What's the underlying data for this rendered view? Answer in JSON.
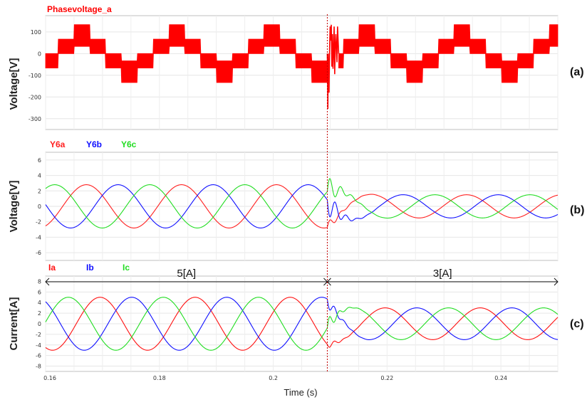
{
  "chart_data": [
    {
      "type": "line",
      "title": "Phasevoltage_a",
      "title_color": "#ff0000",
      "ylabel": "Voltage[V]",
      "panel_label": "(a)",
      "xlim": [
        0.16,
        0.25
      ],
      "ylim": [
        -350,
        175
      ],
      "yticks": [
        100,
        0,
        -100,
        -200,
        -300
      ],
      "ytick_labels": [
        "100",
        "0",
        "-100",
        "-200",
        "-300"
      ],
      "grid": true,
      "series": [
        {
          "color": "#ff0000",
          "waveform": "six-step phase voltage (PWM filled)",
          "fundamental_period": 0.0167,
          "steps": [
            66.7,
            133.3,
            66.7,
            -66.7,
            -133.3,
            -66.7
          ],
          "transient": {
            "t_start": 0.2095,
            "t_end": 0.2115,
            "min": -255,
            "max": 133
          }
        }
      ]
    },
    {
      "type": "line",
      "ylabel": "Voltage[V]",
      "panel_label": "(b)",
      "xlim": [
        0.16,
        0.25
      ],
      "ylim": [
        -7,
        7
      ],
      "yticks": [
        6,
        4,
        2,
        0,
        -2,
        -4,
        -6
      ],
      "ytick_labels": [
        "6",
        "4",
        "2",
        "0",
        "-2",
        "-4",
        "-6"
      ],
      "grid": true,
      "series": [
        {
          "name": "Y6a",
          "color": "#ff2020",
          "amplitude_before": 2.8,
          "amplitude_after": 1.5,
          "phase_deg": 0
        },
        {
          "name": "Y6b",
          "color": "#1010ff",
          "amplitude_before": 2.8,
          "amplitude_after": 1.5,
          "phase_deg": -120
        },
        {
          "name": "Y6c",
          "color": "#22dd22",
          "amplitude_before": 2.8,
          "amplitude_after": 1.5,
          "phase_deg": 120
        }
      ],
      "fundamental_period": 0.0167,
      "event_time": 0.2095,
      "transient": {
        "b_min": -5.0,
        "c_max": 5.0
      }
    },
    {
      "type": "line",
      "ylabel": "Current[A]",
      "panel_label": "(c)",
      "xlabel": "Time (s)",
      "xlim": [
        0.16,
        0.25
      ],
      "ylim": [
        -9,
        9
      ],
      "xticks": [
        0.16,
        0.18,
        0.2,
        0.22,
        0.24
      ],
      "xtick_labels": [
        "0.16",
        "0.18",
        "0.2",
        "0.22",
        "0.24"
      ],
      "yticks": [
        8,
        6,
        4,
        2,
        0,
        -2,
        -4,
        -6,
        -8
      ],
      "ytick_labels": [
        "8",
        "6",
        "4",
        "2",
        "0",
        "-2",
        "-4",
        "-6",
        "-8"
      ],
      "grid": true,
      "series": [
        {
          "name": "Ia",
          "color": "#ff1010",
          "amplitude_before": 5,
          "amplitude_after": 3,
          "phase_deg": -30
        },
        {
          "name": "Ib",
          "color": "#1010ff",
          "amplitude_before": 5,
          "amplitude_after": 3,
          "phase_deg": -150
        },
        {
          "name": "Ic",
          "color": "#22dd22",
          "amplitude_before": 5,
          "amplitude_after": 3,
          "phase_deg": 90
        }
      ],
      "fundamental_period": 0.0167,
      "event_time": 0.2095,
      "annotations": [
        {
          "text": "5[A]",
          "from": 0.16,
          "to": 0.2095
        },
        {
          "text": "3[A]",
          "from": 0.2095,
          "to": 0.25
        }
      ]
    }
  ],
  "event_line": {
    "time": 0.2095,
    "color": "#c00000"
  }
}
